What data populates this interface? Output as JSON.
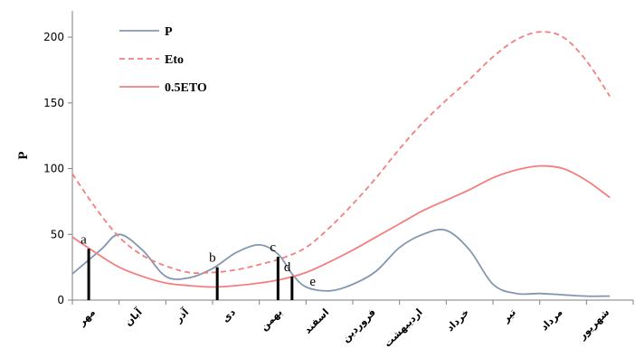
{
  "chart_data": {
    "type": "line",
    "ylabel": "P",
    "xlabel": "",
    "ylim": [
      0,
      220
    ],
    "yticks": [
      0,
      50,
      100,
      150,
      200
    ],
    "categories": [
      "مهر",
      "آبان",
      "آذر",
      "دی",
      "بهمن",
      "اسفند",
      "فروردین",
      "اردیبهشت",
      "خرداد",
      "تیر",
      "مرداد",
      "شهریور"
    ],
    "series": [
      {
        "name": "P",
        "color": "#8497b0",
        "dash": false,
        "x": [
          0,
          0.6,
          1,
          1.5,
          2,
          2.5,
          3,
          3.5,
          4,
          4.4,
          4.7,
          5,
          5.5,
          6,
          6.5,
          7,
          7.5,
          8,
          8.5,
          9,
          9.5,
          10,
          10.5,
          11,
          11.5
        ],
        "values": [
          20,
          38,
          50,
          38,
          18,
          17,
          24,
          36,
          42,
          35,
          20,
          10,
          7,
          12,
          22,
          40,
          50,
          53,
          38,
          12,
          5,
          5,
          4,
          3,
          3
        ]
      },
      {
        "name": "Eto",
        "color": "#f47e7e",
        "dash": true,
        "x": [
          0,
          0.5,
          1,
          1.5,
          2,
          2.5,
          3,
          3.5,
          4,
          4.5,
          5,
          5.5,
          6,
          6.5,
          7,
          7.5,
          8,
          8.5,
          9,
          9.5,
          10,
          10.5,
          11,
          11.5
        ],
        "values": [
          96,
          70,
          48,
          34,
          26,
          21,
          21,
          23,
          27,
          32,
          40,
          55,
          73,
          93,
          115,
          135,
          152,
          168,
          185,
          198,
          204,
          200,
          182,
          155
        ]
      },
      {
        "name": "0.5ETO",
        "color": "#f47e7e",
        "dash": false,
        "x": [
          0,
          0.5,
          1,
          1.5,
          2,
          2.5,
          3,
          3.5,
          4,
          4.5,
          5,
          5.5,
          6,
          6.5,
          7,
          7.5,
          8,
          8.5,
          9,
          9.5,
          10,
          10.5,
          11,
          11.5
        ],
        "values": [
          48,
          36,
          25,
          18,
          13,
          11,
          10,
          11,
          13,
          16,
          21,
          29,
          38,
          48,
          58,
          68,
          76,
          84,
          93,
          99,
          102,
          100,
          91,
          78
        ]
      }
    ],
    "annotations": [
      {
        "label": "a",
        "x": 0.35,
        "y_top": 39
      },
      {
        "label": "b",
        "x": 3.1,
        "y_top": 25
      },
      {
        "label": "c",
        "x": 4.4,
        "y_top": 33
      },
      {
        "label": "d",
        "x": 4.7,
        "y_top": 18
      },
      {
        "label": "e",
        "x": 5.0,
        "y_top": 0
      }
    ],
    "legend": {
      "position": "top-left"
    },
    "grid": false
  }
}
